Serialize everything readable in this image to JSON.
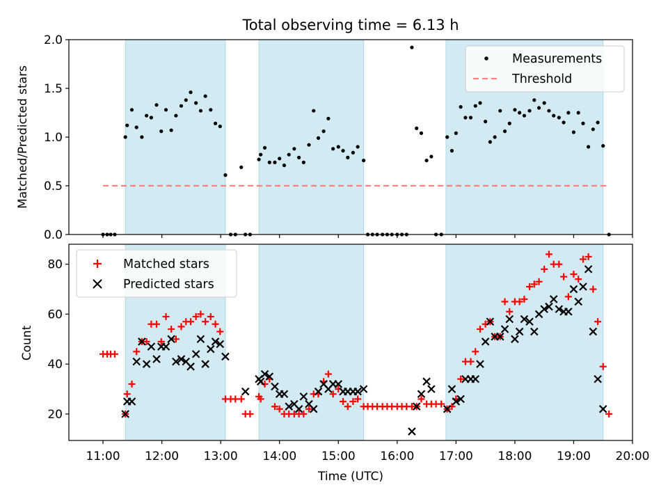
{
  "figure": {
    "title": "Total observing time = 6.13 h",
    "xlabel": "Time (UTC)",
    "shade_color": "#add8e6",
    "threshold_color": "#ff8080"
  },
  "chart_data": [
    {
      "type": "scatter",
      "panel": "top",
      "ylabel": "Matched/Predicted stars",
      "xlim": [
        10.42,
        20.0
      ],
      "ylim": [
        0.0,
        2.0
      ],
      "yticks": [
        0.0,
        0.5,
        1.0,
        1.5,
        2.0
      ],
      "ytick_labels": [
        "0.0",
        "0.5",
        "1.0",
        "1.5",
        "2.0"
      ],
      "legend": {
        "placement": "top-right",
        "entries": [
          "Measurements",
          "Threshold"
        ]
      },
      "threshold": {
        "name": "Threshold",
        "x": [
          11.0,
          19.6
        ],
        "value": 0.5
      },
      "shaded_intervals": [
        [
          11.38,
          13.08
        ],
        [
          13.65,
          15.43
        ],
        [
          16.83,
          19.5
        ]
      ],
      "series": [
        {
          "name": "Measurements",
          "marker": "dot",
          "color": "#000000",
          "x": [
            11.0,
            11.07,
            11.13,
            11.2,
            11.38,
            11.41,
            11.49,
            11.57,
            11.66,
            11.74,
            11.82,
            11.91,
            11.99,
            12.07,
            12.16,
            12.24,
            12.33,
            12.41,
            12.49,
            12.58,
            12.66,
            12.74,
            12.83,
            12.91,
            12.99,
            13.08,
            13.17,
            13.25,
            13.35,
            13.42,
            13.5,
            13.65,
            13.68,
            13.75,
            13.83,
            13.92,
            14.0,
            14.08,
            14.16,
            14.25,
            14.33,
            14.41,
            14.5,
            14.58,
            14.66,
            14.75,
            14.83,
            14.91,
            15.0,
            15.08,
            15.16,
            15.25,
            15.33,
            15.43,
            15.5,
            15.58,
            15.66,
            15.75,
            15.83,
            15.91,
            16.0,
            16.08,
            16.16,
            16.25,
            16.33,
            16.41,
            16.5,
            16.58,
            16.66,
            16.75,
            16.85,
            16.93,
            17.0,
            17.08,
            17.16,
            17.25,
            17.33,
            17.41,
            17.5,
            17.58,
            17.66,
            17.75,
            17.83,
            17.91,
            18.0,
            18.08,
            18.16,
            18.25,
            18.33,
            18.41,
            18.5,
            18.58,
            18.66,
            18.75,
            18.83,
            18.91,
            19.0,
            19.08,
            19.16,
            19.25,
            19.33,
            19.41,
            19.5,
            19.6
          ],
          "y": [
            0.0,
            0.0,
            0.0,
            0.0,
            1.0,
            1.12,
            1.28,
            1.1,
            1.0,
            1.22,
            1.2,
            1.33,
            1.06,
            1.28,
            1.07,
            1.22,
            1.32,
            1.38,
            1.46,
            1.35,
            1.27,
            1.42,
            1.28,
            1.14,
            1.11,
            0.61,
            0.0,
            0.0,
            0.69,
            0.0,
            0.0,
            0.77,
            0.82,
            0.89,
            0.74,
            0.74,
            0.78,
            0.71,
            0.82,
            0.88,
            0.79,
            0.74,
            0.92,
            1.27,
            0.99,
            1.06,
            1.19,
            0.88,
            0.9,
            0.86,
            0.79,
            0.84,
            0.9,
            0.76,
            0.0,
            0.0,
            0.0,
            0.0,
            0.0,
            0.0,
            0.0,
            0.0,
            0.0,
            1.92,
            1.09,
            1.04,
            0.76,
            0.8,
            0.0,
            0.0,
            1.0,
            0.86,
            1.04,
            1.31,
            1.2,
            1.2,
            1.32,
            1.35,
            1.16,
            0.95,
            1.0,
            1.27,
            1.06,
            1.14,
            1.28,
            1.25,
            1.22,
            1.27,
            1.38,
            1.3,
            1.35,
            1.27,
            1.22,
            1.2,
            1.15,
            1.25,
            1.05,
            1.25,
            1.14,
            0.9,
            1.08,
            1.15,
            0.91,
            0.0
          ]
        }
      ]
    },
    {
      "type": "scatter",
      "panel": "bottom",
      "ylabel": "Count",
      "xlabel": "Time (UTC)",
      "xlim": [
        10.42,
        20.0
      ],
      "ylim": [
        9.4,
        88.0
      ],
      "yticks": [
        20,
        40,
        60,
        80
      ],
      "ytick_labels": [
        "20",
        "40",
        "60",
        "80"
      ],
      "xticks": [
        11,
        12,
        13,
        14,
        15,
        16,
        17,
        18,
        19,
        20
      ],
      "xtick_labels": [
        "11:00",
        "12:00",
        "13:00",
        "14:00",
        "15:00",
        "16:00",
        "17:00",
        "18:00",
        "19:00",
        "20:00"
      ],
      "legend": {
        "placement": "top-left",
        "entries": [
          "Matched stars",
          "Predicted stars"
        ]
      },
      "shaded_intervals": [
        [
          11.38,
          13.08
        ],
        [
          13.65,
          15.43
        ],
        [
          16.83,
          19.5
        ]
      ],
      "series": [
        {
          "name": "Matched stars",
          "marker": "plus",
          "color": "#ff0000",
          "x": [
            11.0,
            11.07,
            11.13,
            11.2,
            11.38,
            11.41,
            11.49,
            11.57,
            11.66,
            11.74,
            11.82,
            11.91,
            11.99,
            12.07,
            12.16,
            12.24,
            12.33,
            12.41,
            12.49,
            12.58,
            12.66,
            12.74,
            12.83,
            12.91,
            12.99,
            13.08,
            13.17,
            13.25,
            13.35,
            13.42,
            13.5,
            13.65,
            13.68,
            13.75,
            13.83,
            13.92,
            14.0,
            14.08,
            14.16,
            14.25,
            14.33,
            14.41,
            14.5,
            14.58,
            14.66,
            14.75,
            14.83,
            14.91,
            15.0,
            15.08,
            15.16,
            15.25,
            15.33,
            15.43,
            15.5,
            15.58,
            15.66,
            15.75,
            15.83,
            15.91,
            16.0,
            16.08,
            16.16,
            16.25,
            16.33,
            16.41,
            16.5,
            16.58,
            16.66,
            16.75,
            16.85,
            16.93,
            17.0,
            17.08,
            17.16,
            17.25,
            17.33,
            17.41,
            17.5,
            17.58,
            17.66,
            17.75,
            17.83,
            17.91,
            18.0,
            18.08,
            18.16,
            18.25,
            18.33,
            18.41,
            18.5,
            18.58,
            18.66,
            18.75,
            18.83,
            18.91,
            19.0,
            19.08,
            19.16,
            19.25,
            19.33,
            19.41,
            19.5,
            19.6
          ],
          "y": [
            44,
            44,
            44,
            44,
            20,
            28,
            32,
            45,
            49,
            49,
            56,
            56,
            49,
            59,
            54,
            50,
            55,
            57,
            57,
            59,
            60,
            57,
            59,
            56,
            53,
            26,
            26,
            26,
            26,
            20,
            20,
            27,
            26,
            32,
            34,
            23,
            22,
            20,
            20,
            20,
            20,
            20,
            22,
            28,
            28,
            33,
            36,
            28,
            30,
            25,
            23,
            25,
            26,
            23,
            23,
            23,
            23,
            23,
            23,
            23,
            23,
            23,
            23,
            23,
            23,
            26,
            24,
            24,
            24,
            24,
            22,
            23,
            26,
            34,
            41,
            41,
            45,
            54,
            56,
            57,
            51,
            51,
            65,
            61,
            65,
            65,
            66,
            71,
            72,
            73,
            78,
            84,
            80,
            80,
            75,
            67,
            76,
            74,
            82,
            83,
            70,
            57,
            39,
            20
          ]
        },
        {
          "name": "Predicted stars",
          "marker": "x",
          "color": "#000000",
          "x": [
            11.38,
            11.41,
            11.49,
            11.57,
            11.66,
            11.74,
            11.82,
            11.91,
            11.99,
            12.07,
            12.16,
            12.24,
            12.33,
            12.41,
            12.49,
            12.58,
            12.66,
            12.74,
            12.83,
            12.91,
            12.99,
            13.08,
            13.42,
            13.65,
            13.68,
            13.75,
            13.83,
            13.92,
            14.0,
            14.08,
            14.16,
            14.25,
            14.33,
            14.41,
            14.5,
            14.58,
            14.66,
            14.75,
            14.83,
            14.91,
            15.0,
            15.08,
            15.16,
            15.25,
            15.33,
            15.43,
            16.25,
            16.33,
            16.41,
            16.5,
            16.58,
            16.85,
            16.93,
            17.0,
            17.08,
            17.16,
            17.25,
            17.33,
            17.41,
            17.5,
            17.58,
            17.66,
            17.75,
            17.83,
            17.91,
            18.0,
            18.08,
            18.16,
            18.25,
            18.33,
            18.41,
            18.5,
            18.58,
            18.66,
            18.75,
            18.83,
            18.91,
            19.0,
            19.08,
            19.16,
            19.25,
            19.33,
            19.41,
            19.5
          ],
          "y": [
            20,
            25,
            25,
            41,
            49,
            40,
            47,
            42,
            47,
            47,
            50,
            41,
            42,
            41,
            39,
            44,
            50,
            40,
            46,
            49,
            48,
            43,
            29,
            34,
            33,
            36,
            35,
            31,
            28,
            28,
            23,
            24,
            22,
            27,
            24,
            22,
            29,
            32,
            30,
            32,
            32,
            29,
            29,
            29,
            29,
            30,
            13,
            23,
            28,
            33,
            30,
            22,
            30,
            25,
            26,
            34,
            34,
            34,
            40,
            49,
            57,
            51,
            51,
            54,
            58,
            50,
            53,
            58,
            57,
            53,
            60,
            62,
            63,
            66,
            62,
            61,
            61,
            70,
            65,
            71,
            78,
            53,
            34,
            22
          ]
        }
      ]
    }
  ]
}
